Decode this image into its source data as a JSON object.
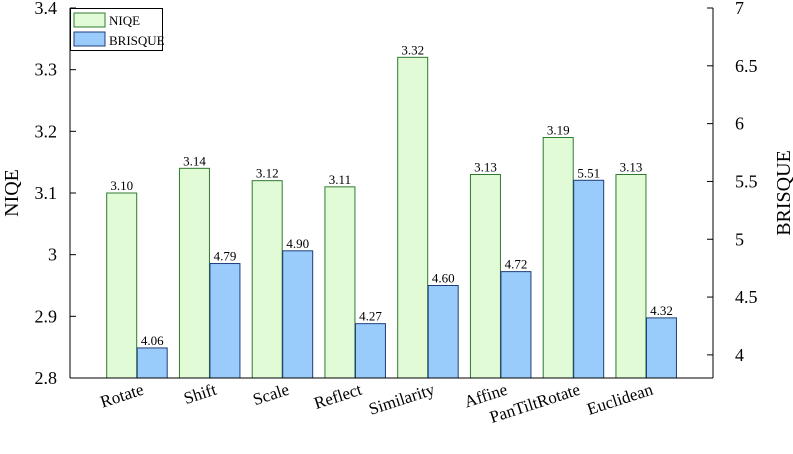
{
  "chart_data": {
    "type": "bar",
    "categories": [
      "Rotate",
      "Shift",
      "Scale",
      "Reflect",
      "Similarity",
      "Affine",
      "PanTiltRotate",
      "Euclidean"
    ],
    "series": [
      {
        "name": "NIQE",
        "axis": "left",
        "values": [
          3.1,
          3.14,
          3.12,
          3.11,
          3.32,
          3.13,
          3.19,
          3.13
        ],
        "labels": [
          "3.10",
          "3.14",
          "3.12",
          "3.11",
          "3.32",
          "3.13",
          "3.19",
          "3.13"
        ],
        "color": "#e1fbd6",
        "edge_color": "#2f7a2f"
      },
      {
        "name": "BRISQUE",
        "axis": "right",
        "values": [
          4.06,
          4.79,
          4.9,
          4.27,
          4.6,
          4.72,
          5.51,
          4.32
        ],
        "labels": [
          "4.06",
          "4.79",
          "4.90",
          "4.27",
          "4.60",
          "4.72",
          "5.51",
          "4.32"
        ],
        "color": "#99ccfa",
        "edge_color": "#1f3d7a"
      }
    ],
    "y_left": {
      "label": "NIQE",
      "lim": [
        2.8,
        3.4
      ],
      "ticks": [
        2.8,
        2.9,
        3.0,
        3.1,
        3.2,
        3.3,
        3.4
      ],
      "tick_labels": [
        "2.8",
        "2.9",
        "3",
        "3.1",
        "3.2",
        "3.3",
        "3.4"
      ]
    },
    "y_right": {
      "label": "BRISQUE",
      "lim": [
        3.8,
        7.0
      ],
      "ticks": [
        4.0,
        4.5,
        5.0,
        5.5,
        6.0,
        6.5,
        7.0
      ],
      "tick_labels": [
        "4",
        "4.5",
        "5",
        "5.5",
        "6",
        "6.5",
        "7"
      ]
    },
    "legend": "top-left",
    "grid": false
  }
}
